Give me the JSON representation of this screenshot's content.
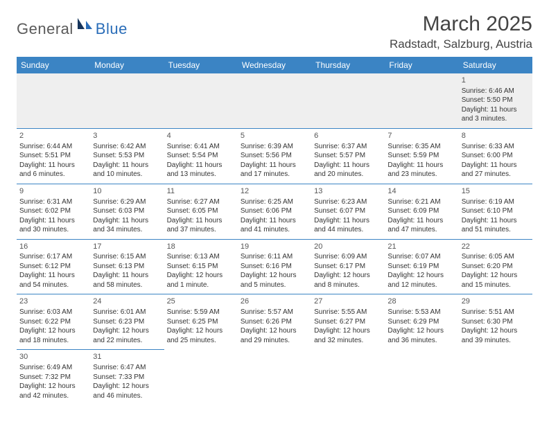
{
  "logo": {
    "general": "General",
    "blue": "Blue"
  },
  "title": "March 2025",
  "location": "Radstadt, Salzburg, Austria",
  "colors": {
    "header_bg": "#3b84c4",
    "header_text": "#ffffff",
    "cell_border": "#3b84c4",
    "first_row_bg": "#efefef",
    "text": "#333333",
    "logo_general": "#5a5a5a",
    "logo_blue": "#2a6db8"
  },
  "day_headers": [
    "Sunday",
    "Monday",
    "Tuesday",
    "Wednesday",
    "Thursday",
    "Friday",
    "Saturday"
  ],
  "weeks": [
    [
      null,
      null,
      null,
      null,
      null,
      null,
      {
        "n": "1",
        "sr": "6:46 AM",
        "ss": "5:50 PM",
        "dl": "11 hours and 3 minutes."
      }
    ],
    [
      {
        "n": "2",
        "sr": "6:44 AM",
        "ss": "5:51 PM",
        "dl": "11 hours and 6 minutes."
      },
      {
        "n": "3",
        "sr": "6:42 AM",
        "ss": "5:53 PM",
        "dl": "11 hours and 10 minutes."
      },
      {
        "n": "4",
        "sr": "6:41 AM",
        "ss": "5:54 PM",
        "dl": "11 hours and 13 minutes."
      },
      {
        "n": "5",
        "sr": "6:39 AM",
        "ss": "5:56 PM",
        "dl": "11 hours and 17 minutes."
      },
      {
        "n": "6",
        "sr": "6:37 AM",
        "ss": "5:57 PM",
        "dl": "11 hours and 20 minutes."
      },
      {
        "n": "7",
        "sr": "6:35 AM",
        "ss": "5:59 PM",
        "dl": "11 hours and 23 minutes."
      },
      {
        "n": "8",
        "sr": "6:33 AM",
        "ss": "6:00 PM",
        "dl": "11 hours and 27 minutes."
      }
    ],
    [
      {
        "n": "9",
        "sr": "6:31 AM",
        "ss": "6:02 PM",
        "dl": "11 hours and 30 minutes."
      },
      {
        "n": "10",
        "sr": "6:29 AM",
        "ss": "6:03 PM",
        "dl": "11 hours and 34 minutes."
      },
      {
        "n": "11",
        "sr": "6:27 AM",
        "ss": "6:05 PM",
        "dl": "11 hours and 37 minutes."
      },
      {
        "n": "12",
        "sr": "6:25 AM",
        "ss": "6:06 PM",
        "dl": "11 hours and 41 minutes."
      },
      {
        "n": "13",
        "sr": "6:23 AM",
        "ss": "6:07 PM",
        "dl": "11 hours and 44 minutes."
      },
      {
        "n": "14",
        "sr": "6:21 AM",
        "ss": "6:09 PM",
        "dl": "11 hours and 47 minutes."
      },
      {
        "n": "15",
        "sr": "6:19 AM",
        "ss": "6:10 PM",
        "dl": "11 hours and 51 minutes."
      }
    ],
    [
      {
        "n": "16",
        "sr": "6:17 AM",
        "ss": "6:12 PM",
        "dl": "11 hours and 54 minutes."
      },
      {
        "n": "17",
        "sr": "6:15 AM",
        "ss": "6:13 PM",
        "dl": "11 hours and 58 minutes."
      },
      {
        "n": "18",
        "sr": "6:13 AM",
        "ss": "6:15 PM",
        "dl": "12 hours and 1 minute."
      },
      {
        "n": "19",
        "sr": "6:11 AM",
        "ss": "6:16 PM",
        "dl": "12 hours and 5 minutes."
      },
      {
        "n": "20",
        "sr": "6:09 AM",
        "ss": "6:17 PM",
        "dl": "12 hours and 8 minutes."
      },
      {
        "n": "21",
        "sr": "6:07 AM",
        "ss": "6:19 PM",
        "dl": "12 hours and 12 minutes."
      },
      {
        "n": "22",
        "sr": "6:05 AM",
        "ss": "6:20 PM",
        "dl": "12 hours and 15 minutes."
      }
    ],
    [
      {
        "n": "23",
        "sr": "6:03 AM",
        "ss": "6:22 PM",
        "dl": "12 hours and 18 minutes."
      },
      {
        "n": "24",
        "sr": "6:01 AM",
        "ss": "6:23 PM",
        "dl": "12 hours and 22 minutes."
      },
      {
        "n": "25",
        "sr": "5:59 AM",
        "ss": "6:25 PM",
        "dl": "12 hours and 25 minutes."
      },
      {
        "n": "26",
        "sr": "5:57 AM",
        "ss": "6:26 PM",
        "dl": "12 hours and 29 minutes."
      },
      {
        "n": "27",
        "sr": "5:55 AM",
        "ss": "6:27 PM",
        "dl": "12 hours and 32 minutes."
      },
      {
        "n": "28",
        "sr": "5:53 AM",
        "ss": "6:29 PM",
        "dl": "12 hours and 36 minutes."
      },
      {
        "n": "29",
        "sr": "5:51 AM",
        "ss": "6:30 PM",
        "dl": "12 hours and 39 minutes."
      }
    ],
    [
      {
        "n": "30",
        "sr": "6:49 AM",
        "ss": "7:32 PM",
        "dl": "12 hours and 42 minutes."
      },
      {
        "n": "31",
        "sr": "6:47 AM",
        "ss": "7:33 PM",
        "dl": "12 hours and 46 minutes."
      },
      null,
      null,
      null,
      null,
      null
    ]
  ],
  "labels": {
    "sunrise": "Sunrise: ",
    "sunset": "Sunset: ",
    "daylight": "Daylight: "
  }
}
